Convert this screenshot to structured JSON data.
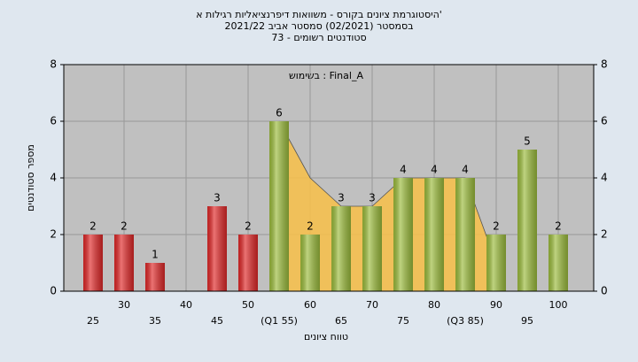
{
  "chart_data": {
    "type": "bar",
    "title": "היסטוגרמת ציונים בקורס - משוואות דיפרנציאליות רגילות א'",
    "subtitle": "בסמסטר  (02/2021)  סמסטר אביב 2021/22",
    "caption": "סטודנטים רשומים - 73",
    "annotation": "בשימוש : Final_A",
    "x_label": "טווח ציונים",
    "y_label": "מספר סטודנטים",
    "categories": [
      "25",
      "30",
      "35",
      "40",
      "45",
      "50",
      "(Q1 55)",
      "60",
      "65",
      "70",
      "75",
      "80",
      "(Q3 85)",
      "90",
      "95",
      "100"
    ],
    "values": [
      2,
      2,
      1,
      0,
      3,
      2,
      6,
      2,
      3,
      3,
      4,
      4,
      4,
      2,
      5,
      2
    ],
    "value_labels": [
      "2",
      "2",
      "1",
      null,
      "3",
      "2",
      "6",
      "2",
      "3",
      "3",
      "4",
      "4",
      "4",
      "2",
      "5",
      "2"
    ],
    "colors": [
      "#e02828",
      "#e02828",
      "#e02828",
      "#e02828",
      "#e02828",
      "#e02828",
      "#9cbc3c",
      "#9cbc3c",
      "#9cbc3c",
      "#9cbc3c",
      "#9cbc3c",
      "#9cbc3c",
      "#9cbc3c",
      "#9cbc3c",
      "#9cbc3c",
      "#9cbc3c"
    ],
    "band_values": [
      null,
      null,
      null,
      null,
      null,
      null,
      6,
      4,
      3,
      3,
      4,
      4,
      4,
      1,
      null,
      null
    ],
    "band_color": "#f8c048",
    "ylim": [
      0,
      8
    ],
    "yticks": [
      0,
      2,
      4,
      6,
      8
    ],
    "grid": true
  }
}
